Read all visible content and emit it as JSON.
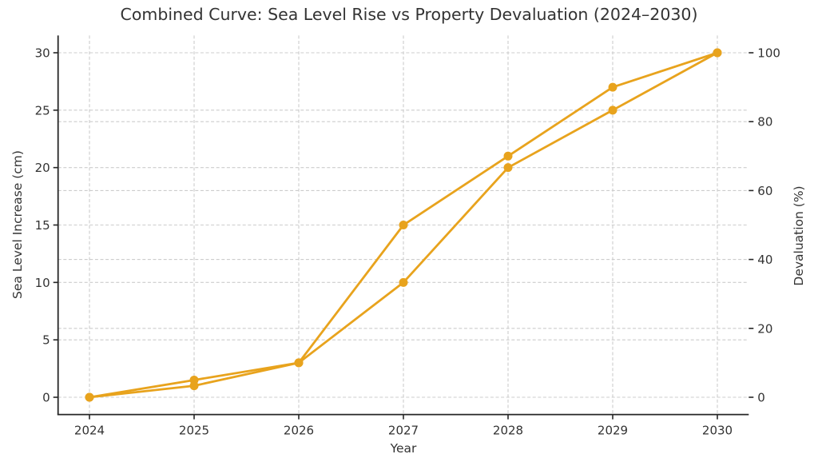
{
  "figure": {
    "background": "#ffffff",
    "text_color": "#333333",
    "spine_color": "#262626",
    "grid_color": "#cccccc"
  },
  "chart_data": {
    "type": "line",
    "title": "Combined Curve: Sea Level Rise vs Property Devaluation (2024–2030)",
    "xlabel": "Year",
    "x": [
      2024,
      2025,
      2026,
      2027,
      2028,
      2029,
      2030
    ],
    "x_tick_labels": [
      "2024",
      "2025",
      "2026",
      "2027",
      "2028",
      "2029",
      "2030"
    ],
    "axes": {
      "left": {
        "label": "Sea Level Increase (cm)",
        "ticks": [
          0,
          5,
          10,
          15,
          20,
          25,
          30
        ],
        "range": [
          0,
          30
        ]
      },
      "right": {
        "label": "Devaluation (%)",
        "ticks": [
          0,
          20,
          40,
          60,
          80,
          100
        ],
        "range": [
          0,
          100
        ]
      }
    },
    "series": [
      {
        "name": "Sea Level Increase (cm)",
        "axis": "left",
        "color": "#E8A31D",
        "marker": "circle",
        "values": [
          0,
          1,
          3,
          10,
          20,
          25,
          30
        ]
      },
      {
        "name": "Devaluation (%)",
        "axis": "right",
        "color": "#E8A31D",
        "marker": "circle",
        "values": [
          0,
          5,
          10,
          50,
          70,
          90,
          100
        ]
      }
    ],
    "grid": {
      "visible": true,
      "style": "dashed",
      "color": "#cccccc"
    },
    "legend": {
      "visible": false
    }
  }
}
